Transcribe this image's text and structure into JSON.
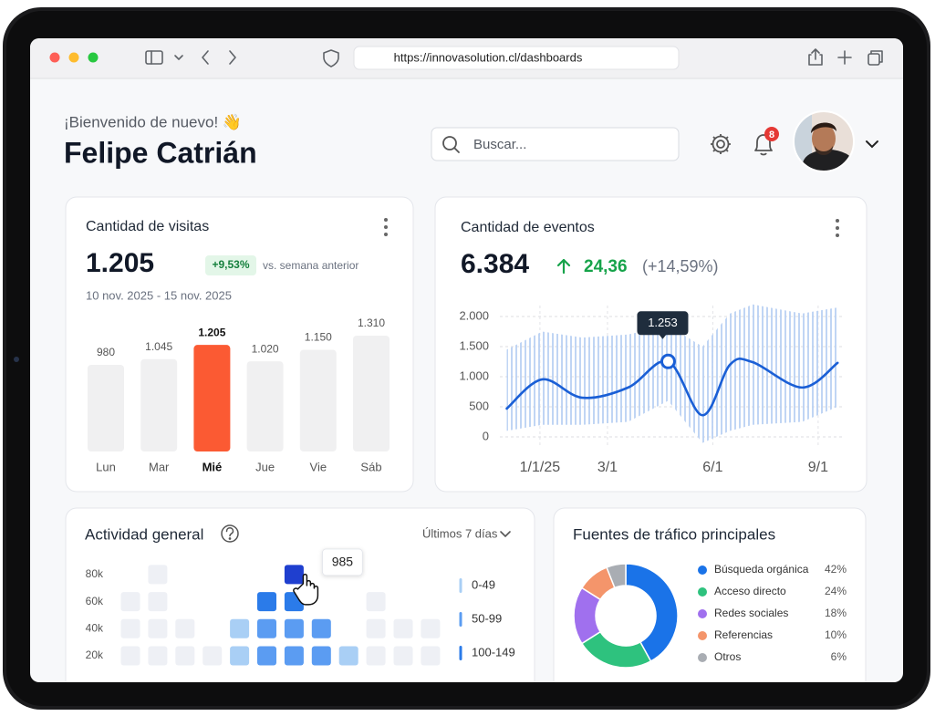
{
  "browser": {
    "url": "https://innovasolution.cl/dashboards"
  },
  "header": {
    "greeting": "¡Bienvenido de nuevo! 👋",
    "name": "Felipe Catrián",
    "search_placeholder": "Buscar...",
    "notifications": 8
  },
  "chart_data": [
    {
      "type": "bar",
      "title": "Cantidad de visitas",
      "headline": "1.205",
      "change": "+9,53%",
      "comparison": "vs. semana anterior",
      "date_range": "10 nov. 2025 - 15 nov. 2025",
      "categories": [
        "Lun",
        "Mar",
        "Mié",
        "Jue",
        "Vie",
        "Sáb"
      ],
      "values": [
        980,
        1045,
        1205,
        1020,
        1150,
        1310
      ],
      "value_labels": [
        "980",
        "1.045",
        "1.205",
        "1.020",
        "1.150",
        "1.310"
      ],
      "color": "#f0f0f1",
      "highlight": "Mié",
      "highlight_color": "#fb5a33"
    },
    {
      "type": "line",
      "title": "Cantidad de eventos",
      "headline": "6.384",
      "change": "24,36",
      "change_percent": "(+14,59%)",
      "x": [
        "2024-12-03",
        "2025-01-03",
        "2025-02-07",
        "2025-03-19",
        "2025-04-23",
        "2025-05-23",
        "2025-06-16",
        "2025-07-06",
        "2025-08-18",
        "2025-09-18"
      ],
      "values": [
        470,
        955,
        650,
        820,
        1253,
        360,
        1200,
        1240,
        820,
        1230
      ],
      "value_labels": [
        null,
        null,
        null,
        null,
        "1.253",
        null,
        null,
        null,
        null,
        null
      ],
      "range_high": [
        1450,
        1750,
        1650,
        1700,
        1850,
        1500,
        2050,
        2200,
        2050,
        2150
      ],
      "range_low": [
        100,
        200,
        200,
        250,
        600,
        -100,
        100,
        200,
        250,
        500
      ],
      "color": "#1a5fd6",
      "range_color": "#b9d0f3",
      "xlim": [
        "2024-12-01",
        "2025-09-25"
      ],
      "xticks": [
        {
          "value": "2025-01-01",
          "label": "1/1/25"
        },
        {
          "value": "2025-03-01",
          "label": "3/1"
        },
        {
          "value": "2025-06-01",
          "label": "6/1"
        },
        {
          "value": "2025-09-01",
          "label": "9/1"
        }
      ],
      "ylim": [
        0,
        2000
      ],
      "yticks": [
        0,
        500,
        {
          "value": 1000,
          "label": "1.000"
        },
        {
          "value": 1500,
          "label": "1.500"
        },
        {
          "value": 2000,
          "label": "2.000"
        }
      ],
      "grid": true
    },
    {
      "type": "heatmap",
      "title": "Actividad general",
      "period": "Últimos 7 días",
      "yticks": [
        {
          "value": 20000,
          "label": "20k"
        },
        {
          "value": 40000,
          "label": "40k"
        },
        {
          "value": 60000,
          "label": "60k"
        },
        {
          "value": 80000,
          "label": "80k"
        }
      ],
      "values": [
        [
          0,
          0,
          0,
          0,
          30,
          75,
          75,
          75,
          30,
          0,
          0,
          0
        ],
        [
          0,
          0,
          0,
          null,
          30,
          75,
          75,
          75,
          null,
          0,
          0,
          0
        ],
        [
          0,
          0,
          null,
          null,
          null,
          120,
          120,
          null,
          null,
          0,
          null,
          null
        ],
        [
          null,
          0,
          null,
          null,
          null,
          null,
          985,
          null,
          null,
          null,
          null,
          null
        ]
      ],
      "empty_color": "#eef0f5",
      "max_color": "#1f3fcf",
      "legend": [
        {
          "label": "0-49",
          "min": 0,
          "max": 49,
          "color": "#a9cff5"
        },
        {
          "label": "50-99",
          "min": 50,
          "max": 99,
          "color": "#5b9cf2"
        },
        {
          "label": "100-149",
          "min": 100,
          "max": 149,
          "color": "#2b7be9"
        }
      ]
    },
    {
      "type": "pie",
      "title": "Fuentes de tráfico principales",
      "categories": [
        "Búsqueda orgánica",
        "Acceso directo",
        "Redes sociales",
        "Referencias",
        "Otros"
      ],
      "values": [
        42,
        24,
        18,
        10,
        6
      ],
      "value_labels": [
        "42%",
        "24%",
        "18%",
        "10%",
        "6%"
      ],
      "colors": [
        "#1a73e8",
        "#2ec27e",
        "#a070ee",
        "#f4956b",
        "#a9adb3"
      ],
      "donut": true
    }
  ]
}
